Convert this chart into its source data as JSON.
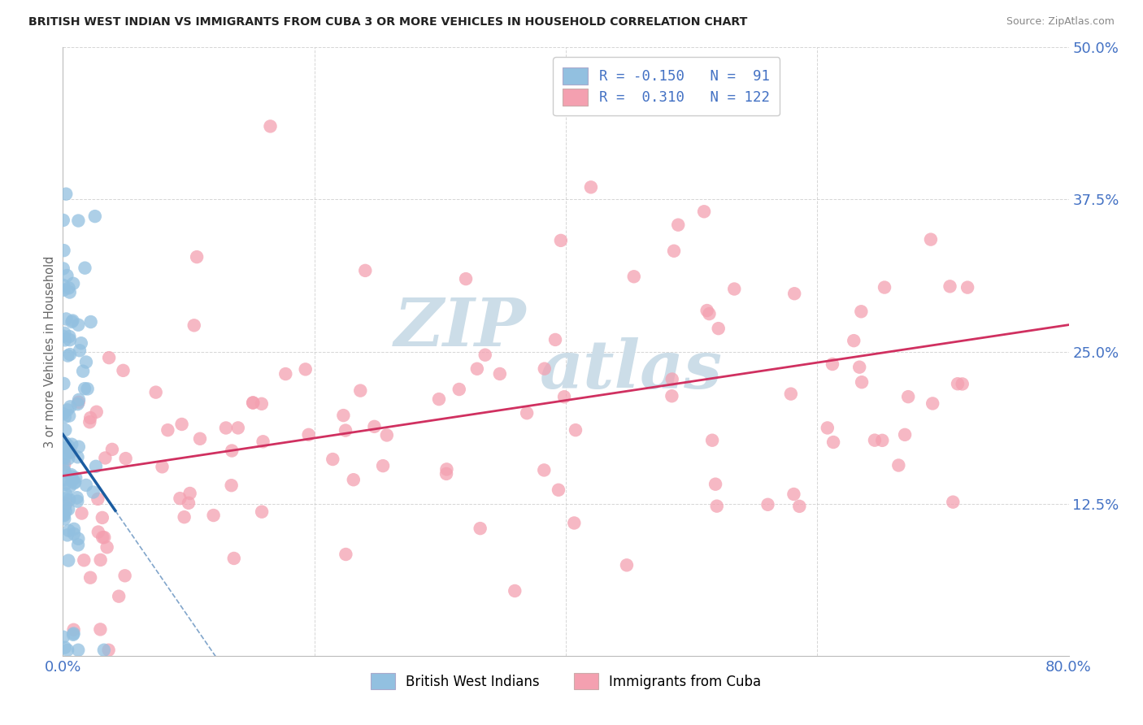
{
  "title": "BRITISH WEST INDIAN VS IMMIGRANTS FROM CUBA 3 OR MORE VEHICLES IN HOUSEHOLD CORRELATION CHART",
  "source": "Source: ZipAtlas.com",
  "ylabel": "3 or more Vehicles in Household",
  "legend1_label": "R = -0.150   N =  91",
  "legend2_label": "R =  0.310   N = 122",
  "legend_bottom1": "British West Indians",
  "legend_bottom2": "Immigrants from Cuba",
  "blue_scatter_color": "#92c0e0",
  "pink_scatter_color": "#f4a0b0",
  "blue_line_color": "#1a5ca0",
  "pink_line_color": "#d03060",
  "title_color": "#222222",
  "source_color": "#888888",
  "axis_tick_color": "#4472c4",
  "ylabel_color": "#666666",
  "grid_color": "#cccccc",
  "background_color": "#ffffff",
  "watermark_color": "#ccdde8",
  "R_blue": -0.15,
  "N_blue": 91,
  "R_pink": 0.31,
  "N_pink": 122,
  "xlim": [
    0.0,
    0.8
  ],
  "ylim": [
    0.0,
    0.5
  ],
  "x_ticks": [
    0.0,
    0.2,
    0.4,
    0.6,
    0.8
  ],
  "x_tick_labels": [
    "0.0%",
    "",
    "",
    "",
    "80.0%"
  ],
  "y_ticks_right": [
    0.0,
    0.125,
    0.25,
    0.375,
    0.5
  ],
  "y_tick_labels_right": [
    "",
    "12.5%",
    "25.0%",
    "37.5%",
    "50.0%"
  ],
  "blue_intercept": 0.182,
  "blue_slope": -1.5,
  "pink_intercept": 0.148,
  "pink_slope": 0.155
}
